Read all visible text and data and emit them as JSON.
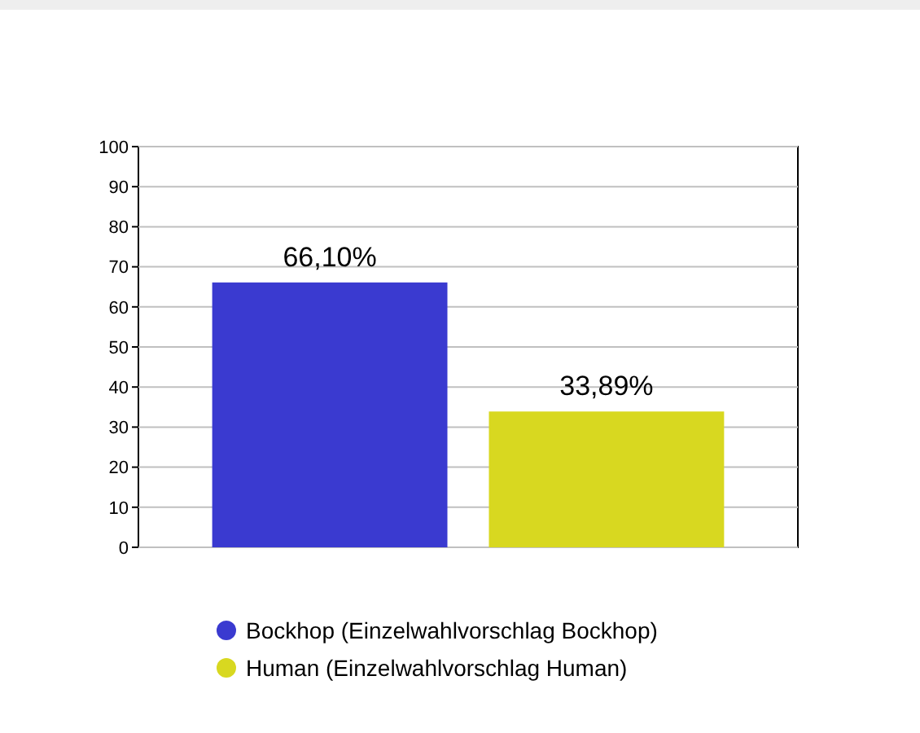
{
  "chart_data": {
    "type": "bar",
    "categories": [
      null
    ],
    "series": [
      {
        "name": "Bockhop (Einzelwahlvorschlag Bockhop)",
        "color": "#3a3ad0",
        "values": [
          66.1
        ],
        "value_labels": [
          "66,10%"
        ]
      },
      {
        "name": "Human (Einzelwahlvorschlag Human)",
        "color": "#d8d820",
        "values": [
          33.89
        ],
        "value_labels": [
          "33,89%"
        ]
      }
    ],
    "ylim": [
      0,
      100
    ],
    "yticks": [
      0,
      10,
      20,
      30,
      40,
      50,
      60,
      70,
      80,
      90,
      100
    ],
    "grid": "y",
    "legend": "bottom"
  }
}
